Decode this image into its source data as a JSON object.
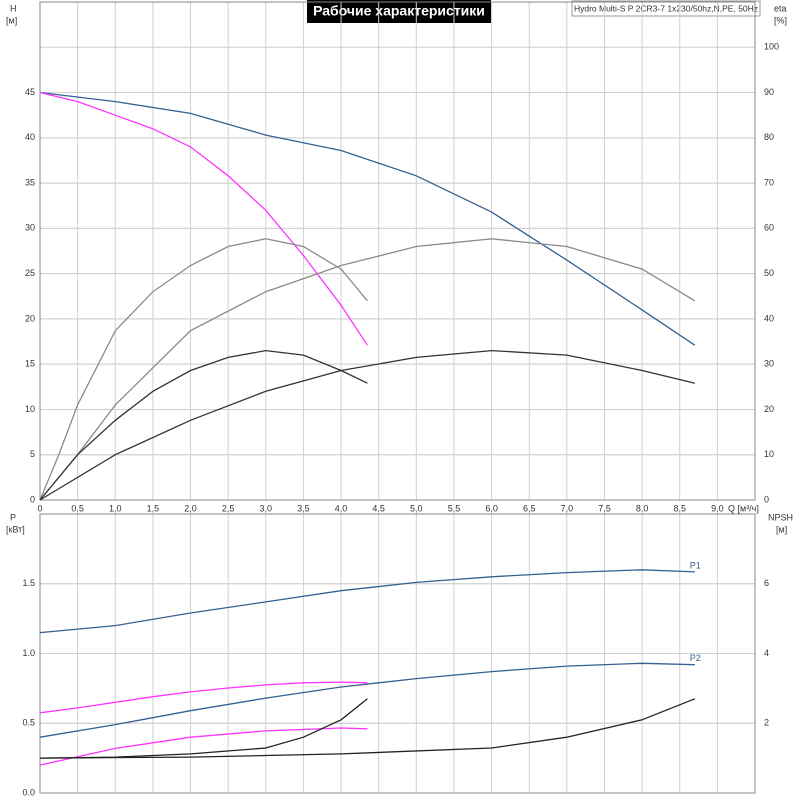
{
  "chart_data": [
    {
      "type": "line",
      "title": "Рабочие характеристики",
      "subtitle": "Hydro Multi-S P 2CR3-7 1x230/50hz,N,PE, 50Hz",
      "ylabel": "H",
      "yunit": "[м]",
      "y2label": "eta",
      "y2unit": "[%]",
      "xlabel": "Q [м³/ч]",
      "xlim": [
        0,
        9.5
      ],
      "ylim": [
        0,
        55
      ],
      "y2lim": [
        0,
        110
      ],
      "grid": true,
      "xticks": [
        0,
        {
          "value": 0.5,
          "label": "0,5"
        },
        {
          "value": 1,
          "label": "1,0"
        },
        {
          "value": 1.5,
          "label": "1,5"
        },
        {
          "value": 2,
          "label": "2,0"
        },
        {
          "value": 2.5,
          "label": "2,5"
        },
        {
          "value": 3,
          "label": "3,0"
        },
        {
          "value": 3.5,
          "label": "3,5"
        },
        {
          "value": 4,
          "label": "4,0"
        },
        {
          "value": 4.5,
          "label": "4,5"
        },
        {
          "value": 5,
          "label": "5,0"
        },
        {
          "value": 5.5,
          "label": "5,5"
        },
        {
          "value": 6,
          "label": "6,0"
        },
        {
          "value": 6.5,
          "label": "6,5"
        },
        {
          "value": 7,
          "label": "7,0"
        },
        {
          "value": 7.5,
          "label": "7,5"
        },
        {
          "value": 8,
          "label": "8,0"
        },
        {
          "value": 8.5,
          "label": "8,5"
        },
        {
          "value": 9,
          "label": "9,0"
        }
      ],
      "yticks": [
        0,
        5,
        10,
        15,
        20,
        25,
        30,
        35,
        40,
        45
      ],
      "y2ticks": [
        0,
        10,
        20,
        30,
        40,
        50,
        60,
        70,
        80,
        90,
        100
      ],
      "series": [
        {
          "color": "#34618f",
          "x": [
            0,
            1,
            2,
            3,
            4,
            5,
            6,
            7,
            8,
            8.7
          ],
          "values": [
            45,
            44,
            42.7,
            40.3,
            38.6,
            35.8,
            31.8,
            26.5,
            21,
            17.1
          ]
        },
        {
          "color": "#ff33ff",
          "x": [
            0,
            0.5,
            1,
            1.5,
            2,
            2.5,
            3,
            3.5,
            4,
            4.35
          ],
          "values": [
            45,
            44,
            42.5,
            41,
            39,
            35.8,
            32,
            27,
            21.5,
            17.1
          ]
        },
        {
          "color": "#8a8a8a",
          "axis": "y2",
          "x": [
            0,
            0.5,
            1,
            2,
            3,
            4,
            5,
            6,
            7,
            8,
            8.7
          ],
          "values": [
            0,
            10,
            21,
            37.4,
            46,
            51.8,
            56,
            57.7,
            56,
            51,
            44
          ]
        },
        {
          "color": "#8a8a8a",
          "axis": "y2",
          "x": [
            0,
            0.25,
            0.5,
            1,
            1.5,
            2,
            2.5,
            3,
            3.5,
            4,
            4.35
          ],
          "values": [
            0,
            10,
            21,
            37.4,
            46,
            51.8,
            56,
            57.7,
            56,
            51,
            44
          ]
        },
        {
          "color": "#333333",
          "axis": "y2",
          "x": [
            0,
            1,
            2,
            3,
            4,
            5,
            6,
            7,
            8,
            8.7
          ],
          "values": [
            0,
            10,
            17.6,
            24,
            28.6,
            31.5,
            33,
            32,
            28.6,
            25.8
          ]
        },
        {
          "color": "#333333",
          "axis": "y2",
          "x": [
            0,
            0.5,
            1,
            1.5,
            2,
            2.5,
            3,
            3.5,
            4,
            4.35
          ],
          "values": [
            0,
            10,
            17.6,
            24,
            28.6,
            31.5,
            33,
            32,
            28.6,
            25.8
          ]
        }
      ]
    },
    {
      "type": "line",
      "ylabel": "P",
      "yunit": "[кВт]",
      "y2label": "NPSH",
      "y2unit": "[м]",
      "xlim": [
        0,
        9.5
      ],
      "ylim": [
        0,
        2
      ],
      "y2lim": [
        0,
        8
      ],
      "grid": true,
      "xticks": [
        0,
        0.5,
        1,
        1.5,
        2,
        2.5,
        3,
        3.5,
        4,
        4.5,
        5,
        5.5,
        6,
        6.5,
        7,
        7.5,
        8,
        8.5,
        9
      ],
      "yticks": [
        {
          "value": 0,
          "label": "0.0"
        },
        {
          "value": 0.5,
          "label": "0.5"
        },
        {
          "value": 1,
          "label": "1.0"
        },
        {
          "value": 1.5,
          "label": "1.5"
        }
      ],
      "y2ticks": [
        2,
        4,
        6
      ],
      "series": [
        {
          "name": "P1",
          "color": "#34618f",
          "x": [
            0,
            1,
            2,
            3,
            4,
            5,
            6,
            7,
            8,
            8.7
          ],
          "values": [
            1.15,
            1.2,
            1.29,
            1.37,
            1.45,
            1.51,
            1.55,
            1.58,
            1.6,
            1.585
          ]
        },
        {
          "name": "P2",
          "color": "#34618f",
          "x": [
            0,
            1,
            2,
            3,
            4,
            5,
            6,
            7,
            8,
            8.7
          ],
          "values": [
            0.4,
            0.49,
            0.59,
            0.68,
            0.76,
            0.82,
            0.87,
            0.91,
            0.93,
            0.92
          ]
        },
        {
          "color": "#ff33ff",
          "x": [
            0,
            0.5,
            1,
            1.5,
            2,
            2.5,
            3,
            3.5,
            4,
            4.35
          ],
          "values": [
            0.575,
            0.61,
            0.65,
            0.69,
            0.725,
            0.753,
            0.775,
            0.79,
            0.795,
            0.79
          ]
        },
        {
          "color": "#ff33ff",
          "x": [
            0,
            1,
            2,
            3,
            4,
            4.35
          ],
          "values": [
            0.2,
            0.32,
            0.4,
            0.445,
            0.466,
            0.46
          ]
        },
        {
          "color": "#222222",
          "axis": "y2",
          "x": [
            0,
            2,
            4,
            6,
            7,
            8,
            8.7
          ],
          "values": [
            1,
            1.03,
            1.12,
            1.29,
            1.6,
            2.1,
            2.7
          ]
        },
        {
          "color": "#222222",
          "axis": "y2",
          "x": [
            0,
            1,
            2,
            3,
            3.5,
            4,
            4.35
          ],
          "values": [
            1,
            1.03,
            1.12,
            1.29,
            1.6,
            2.1,
            2.7
          ]
        }
      ]
    }
  ]
}
